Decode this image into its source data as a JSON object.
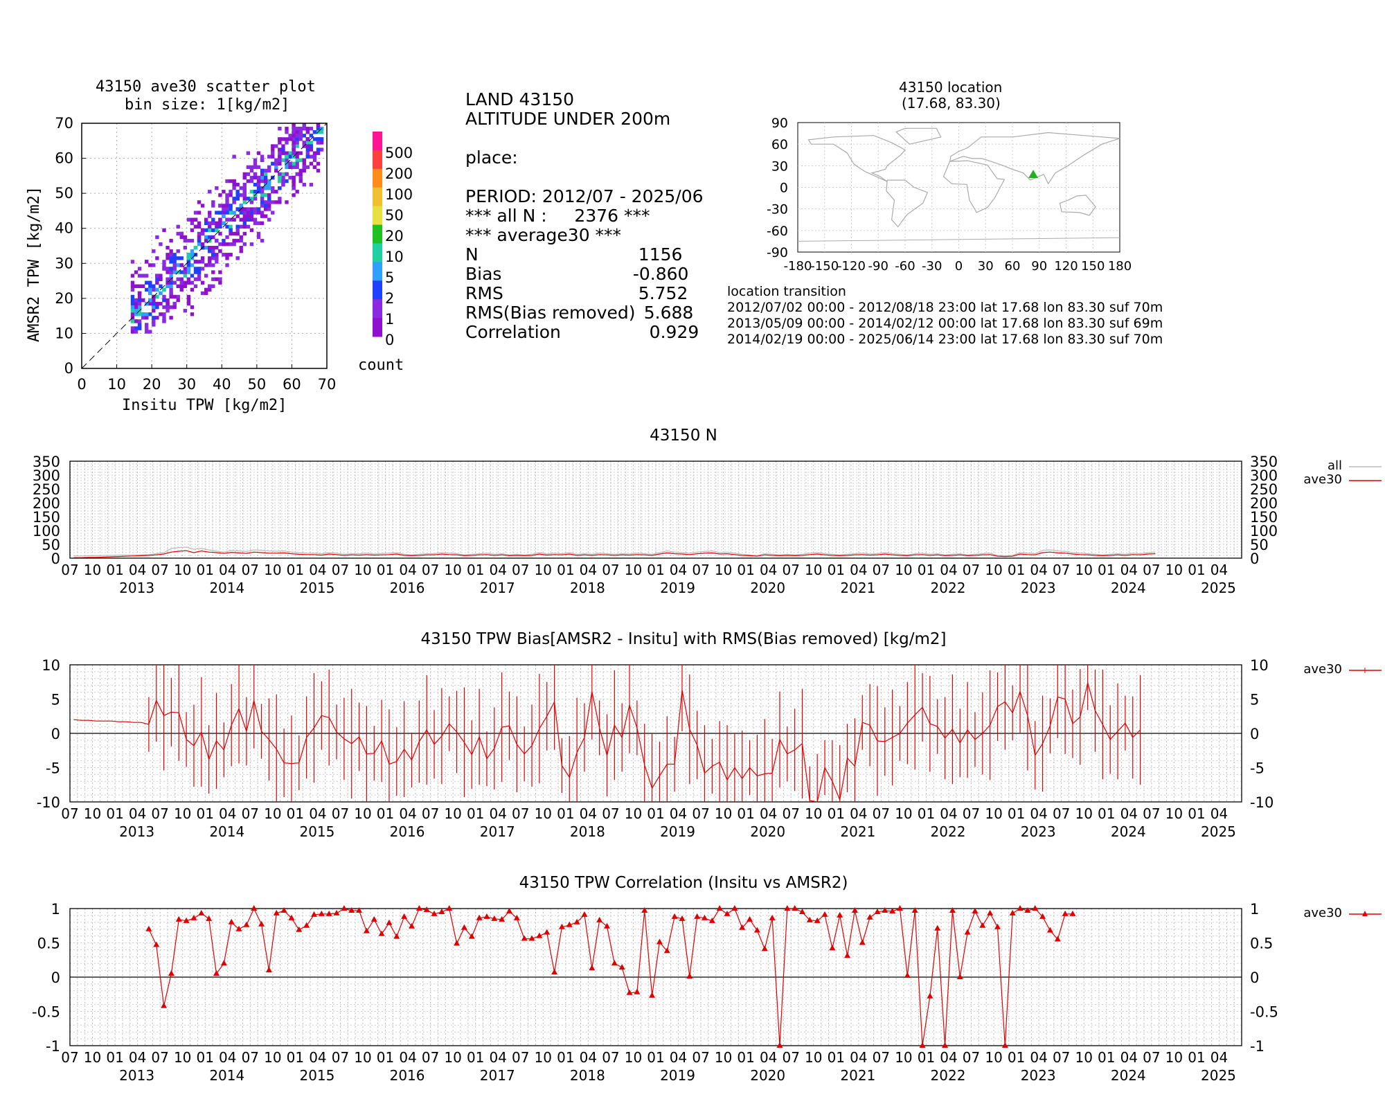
{
  "scatter": {
    "title1": "43150 ave30 scatter plot",
    "title2": "bin size: 1[kg/m2]",
    "xlabel": "Insitu TPW [kg/m2]",
    "ylabel": "AMSR2 TPW [kg/m2]",
    "ticks": [
      "0",
      "10",
      "20",
      "30",
      "40",
      "50",
      "60",
      "70"
    ],
    "colorbar_labels": [
      "500",
      "200",
      "100",
      "50",
      "20",
      "10",
      "5",
      "2",
      "1",
      "0"
    ],
    "colorbar_colors": [
      "#ff1493",
      "#ff4040",
      "#ff8c1a",
      "#f0c030",
      "#e6e040",
      "#20c020",
      "#20d0a0",
      "#30a0ff",
      "#2040ff",
      "#8a2be2",
      "#9010d0"
    ],
    "colorbar_title": "count"
  },
  "info": {
    "line1": "LAND 43150",
    "line2": "ALTITUDE UNDER 200m",
    "place": "place:",
    "period": "PERIOD: 2012/07 - 2025/06",
    "all_n": "*** all N :     2376 ***",
    "average30": "*** average30 ***",
    "stats": [
      {
        "k": "N",
        "v": "    1156"
      },
      {
        "k": "Bias",
        "v": "   -0.860"
      },
      {
        "k": "RMS",
        "v": "    5.752"
      },
      {
        "k": "RMS(Bias removed)",
        "v": "     5.688"
      },
      {
        "k": "Correlation",
        "v": "      0.929"
      }
    ]
  },
  "map": {
    "title1": "43150 location",
    "title2": "(17.68, 83.30)",
    "yticks": [
      "90",
      "60",
      "30",
      "0",
      "-30",
      "-60",
      "-90"
    ],
    "xticks": [
      "-180",
      "-150",
      "-120",
      "-90",
      "-60",
      "-30",
      "0",
      "30",
      "60",
      "90",
      "120",
      "150",
      "180"
    ],
    "station": {
      "lat": 17.68,
      "lon": 83.3
    },
    "marker_color": "#22b022"
  },
  "transition": {
    "title": "location transition",
    "rows": [
      "2012/07/02 00:00 - 2012/08/18 23:00 lat 17.68 lon 83.30 suf 70m",
      "2013/05/09 00:00 - 2014/02/12 00:00 lat 17.68 lon 83.30 suf 69m",
      "2014/02/19 00:00 - 2025/06/14 23:00 lat 17.68 lon 83.30 suf 70m"
    ]
  },
  "timeaxis": {
    "month_labels": [
      "07",
      "10",
      "01",
      "04"
    ],
    "years": [
      "2013",
      "2014",
      "2015",
      "2016",
      "2017",
      "2018",
      "2019",
      "2020",
      "2021",
      "2022",
      "2023",
      "2024",
      "2025"
    ]
  },
  "chart_data": [
    {
      "type": "line",
      "title": "43150 N",
      "ylim": [
        0,
        350
      ],
      "yticks": [
        "350",
        "300",
        "250",
        "200",
        "150",
        "100",
        "50",
        "0"
      ],
      "legend": [
        {
          "name": "all",
          "color": "#bbbbbb"
        },
        {
          "name": "ave30",
          "color": "#e00000"
        }
      ],
      "x_start": "2012-07",
      "series": [
        {
          "name": "all",
          "color": "#bbbbbb",
          "values": [
            8,
            8,
            9,
            9,
            10,
            10,
            11,
            11,
            12,
            12,
            13,
            16,
            20,
            35,
            38,
            40,
            32,
            35,
            30,
            25,
            22,
            28,
            26,
            24,
            30,
            28,
            26,
            25,
            26,
            22,
            20,
            18,
            18,
            16,
            20,
            18,
            14,
            16,
            16,
            18,
            15,
            17,
            18,
            20,
            14,
            12,
            14,
            16,
            16,
            20,
            18,
            16,
            12,
            14,
            16,
            18,
            14,
            16,
            12,
            14,
            12,
            14,
            20,
            15,
            18,
            16,
            20,
            14,
            16,
            14,
            18,
            16,
            14,
            16,
            15,
            18,
            16,
            14,
            20,
            26,
            22,
            20,
            18,
            22,
            24,
            26,
            20,
            22,
            18,
            14,
            12,
            10,
            16,
            14,
            12,
            14,
            12,
            14,
            18,
            20,
            16,
            14,
            12,
            14,
            16,
            18,
            15,
            16,
            20,
            16,
            14,
            12,
            16,
            18,
            14,
            16,
            12,
            14,
            16,
            12,
            14,
            16,
            18,
            10,
            8,
            10,
            20,
            18,
            16,
            28,
            30,
            26,
            24,
            20,
            18,
            16,
            14,
            12,
            14,
            16,
            14,
            18,
            16,
            20,
            22
          ]
        },
        {
          "name": "ave30",
          "color": "#e00000",
          "values": [
            2,
            2,
            3,
            3,
            4,
            5,
            6,
            7,
            8,
            9,
            10,
            12,
            15,
            22,
            25,
            27,
            20,
            26,
            22,
            20,
            17,
            21,
            19,
            17,
            22,
            20,
            18,
            18,
            19,
            16,
            14,
            13,
            13,
            11,
            15,
            13,
            10,
            12,
            11,
            13,
            11,
            12,
            13,
            15,
            10,
            9,
            10,
            12,
            12,
            15,
            13,
            12,
            9,
            10,
            12,
            13,
            10,
            12,
            9,
            10,
            9,
            10,
            15,
            11,
            13,
            12,
            15,
            10,
            12,
            10,
            13,
            12,
            10,
            12,
            11,
            13,
            12,
            10,
            15,
            19,
            16,
            15,
            13,
            16,
            18,
            19,
            15,
            16,
            13,
            10,
            9,
            7,
            12,
            10,
            9,
            10,
            9,
            10,
            13,
            15,
            12,
            10,
            9,
            10,
            12,
            13,
            11,
            12,
            15,
            12,
            10,
            9,
            12,
            13,
            10,
            12,
            9,
            10,
            12,
            9,
            10,
            12,
            13,
            7,
            6,
            7,
            15,
            13,
            12,
            20,
            22,
            19,
            18,
            15,
            13,
            12,
            10,
            9,
            10,
            12,
            10,
            13,
            12,
            15,
            16
          ]
        }
      ]
    },
    {
      "type": "line",
      "title": "43150 TPW Bias[AMSR2 - Insitu] with RMS(Bias removed) [kg/m2]",
      "ylim": [
        -10,
        10
      ],
      "yticks": [
        "10",
        "5",
        "0",
        "-5",
        "-10"
      ],
      "legend": [
        {
          "name": "ave30",
          "color": "#e00000"
        }
      ],
      "x_start": "2012-07",
      "series": [
        {
          "name": "ave30",
          "color": "#e00000",
          "values": [
            2.0,
            1.9,
            1.9,
            1.8,
            1.8,
            1.8,
            1.7,
            1.7,
            1.6,
            1.6,
            1.3,
            4.8,
            2.6,
            3.1,
            3.0,
            -0.9,
            -1.8,
            0.2,
            -3.8,
            -1.1,
            -2.4,
            1.2,
            3.6,
            0.3,
            4.8,
            0.3,
            -0.9,
            -2.3,
            -4.3,
            -4.4,
            -4.3,
            -0.6,
            0.8,
            2.6,
            2.3,
            0.2,
            -0.8,
            -1.5,
            -0.5,
            -3.0,
            -2.9,
            -1.1,
            -4.5,
            -4.1,
            -2.3,
            -3.9,
            -1.2,
            0.5,
            -1.6,
            -0.4,
            1.4,
            0.2,
            -1.3,
            -3.1,
            -0.5,
            -3.7,
            -2.2,
            0.9,
            1.1,
            -1.6,
            -3.0,
            -1.8,
            0.7,
            2.5,
            4.6,
            -4.7,
            -6.4,
            -2.8,
            -0.6,
            6.1,
            0.8,
            -3.2,
            1.2,
            -0.6,
            4.1,
            0.8,
            -4.6,
            -8.0,
            -6.2,
            -4.5,
            -4.5,
            6.3,
            0.6,
            -1.7,
            -5.8,
            -4.8,
            -4.2,
            -6.8,
            -5.0,
            -6.6,
            -5.0,
            -6.2,
            -5.9,
            -5.8,
            -0.9,
            -3.0,
            -2.4,
            -1.5,
            -9.8,
            -10.0,
            -5.0,
            -7.0,
            -9.7,
            -3.6,
            -4.8,
            1.6,
            1.2,
            -1.1,
            -1.2,
            -0.6,
            0.0,
            1.5,
            2.7,
            3.8,
            1.4,
            1.0,
            -0.7,
            0.6,
            -1.4,
            0.5,
            -0.9,
            0.0,
            1.2,
            3.9,
            4.6,
            3.0,
            6.1,
            2.6,
            -3.2,
            -1.5,
            1.1,
            5.3,
            5.0,
            1.4,
            2.4,
            7.4,
            3.3,
            1.3,
            -0.9,
            0.3,
            1.5,
            -0.6,
            0.5
          ]
        }
      ]
    },
    {
      "type": "line",
      "title": "43150 TPW Correlation (Insitu vs AMSR2)",
      "ylim": [
        -1,
        1
      ],
      "yticks": [
        "1",
        "0.5",
        "0",
        "-0.5",
        "-1"
      ],
      "legend": [
        {
          "name": "ave30",
          "color": "#e00000"
        }
      ],
      "x_start": "2012-07",
      "series": [
        {
          "name": "ave30",
          "color": "#e00000",
          "values": [
            null,
            null,
            null,
            null,
            null,
            null,
            null,
            null,
            null,
            null,
            0.7,
            0.47,
            -0.42,
            0.05,
            0.84,
            0.82,
            0.86,
            0.93,
            0.85,
            0.05,
            0.2,
            0.8,
            0.7,
            0.76,
            1.0,
            0.77,
            0.1,
            0.93,
            0.97,
            0.86,
            0.69,
            0.75,
            0.91,
            0.92,
            0.92,
            0.93,
            1.0,
            0.97,
            0.97,
            0.67,
            0.84,
            0.63,
            0.79,
            0.59,
            0.88,
            0.74,
            1.0,
            0.98,
            0.92,
            0.95,
            1.0,
            0.49,
            0.72,
            0.59,
            0.86,
            0.88,
            0.85,
            0.84,
            0.96,
            0.86,
            0.56,
            0.56,
            0.6,
            0.65,
            0.07,
            0.73,
            0.76,
            0.8,
            0.91,
            0.13,
            0.83,
            0.74,
            0.2,
            0.14,
            -0.23,
            -0.22,
            0.97,
            -0.27,
            0.51,
            0.38,
            0.88,
            0.85,
            0.01,
            0.88,
            0.86,
            0.82,
            1.0,
            0.92,
            1.0,
            0.72,
            0.84,
            0.68,
            0.41,
            0.86,
            -1.0,
            1.0,
            1.0,
            0.95,
            0.83,
            0.82,
            0.91,
            0.42,
            0.9,
            0.31,
            0.97,
            0.5,
            0.87,
            0.95,
            0.97,
            0.96,
            1.0,
            0.02,
            0.97,
            -1.0,
            -0.28,
            0.71,
            -1.0,
            0.97,
            0.0,
            0.65,
            0.96,
            0.75,
            0.93,
            0.73,
            -1.0,
            0.93,
            1.0,
            0.97,
            1.0,
            0.88,
            0.68,
            0.55,
            0.92,
            0.92
          ]
        }
      ]
    }
  ]
}
